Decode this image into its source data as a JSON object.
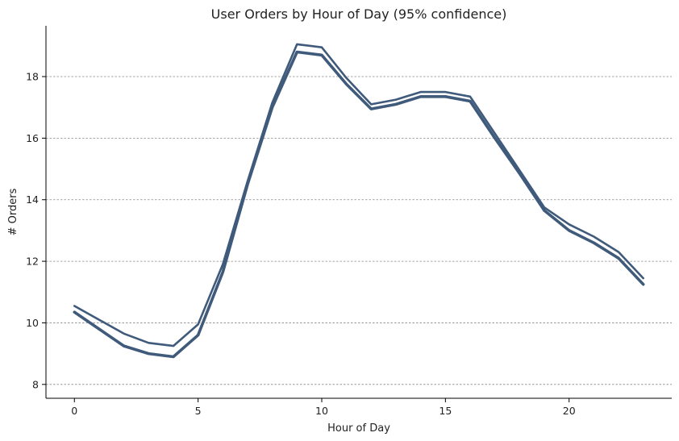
{
  "chart_data": {
    "type": "line",
    "title": "User Orders by Hour of Day (95% confidence)",
    "xlabel": "Hour of Day",
    "ylabel": "# Orders",
    "xlim": [
      -1.15,
      24.15
    ],
    "ylim": [
      7.55,
      19.65
    ],
    "xticks": [
      0,
      5,
      10,
      15,
      20
    ],
    "yticks": [
      8,
      10,
      12,
      14,
      16,
      18
    ],
    "grid": "horizontal-dashed",
    "line_color": "#3f5a7a",
    "x": [
      0,
      1,
      2,
      3,
      4,
      5,
      6,
      7,
      8,
      9,
      10,
      11,
      12,
      13,
      14,
      15,
      16,
      17,
      18,
      19,
      20,
      21,
      22,
      23
    ],
    "series": [
      {
        "values": [
          10.55,
          10.1,
          9.65,
          9.35,
          9.25,
          9.95,
          11.9,
          14.6,
          17.15,
          19.05,
          18.95,
          17.95,
          17.1,
          17.25,
          17.5,
          17.5,
          17.35,
          16.15,
          14.95,
          13.75,
          13.2,
          12.8,
          12.3,
          11.45
        ]
      },
      {
        "values": [
          10.35,
          9.8,
          9.25,
          9.0,
          8.9,
          9.6,
          11.65,
          14.5,
          17.0,
          18.8,
          18.7,
          17.75,
          16.95,
          17.1,
          17.35,
          17.35,
          17.2,
          16.0,
          14.85,
          13.65,
          13.0,
          12.6,
          12.1,
          11.25
        ]
      }
    ]
  }
}
